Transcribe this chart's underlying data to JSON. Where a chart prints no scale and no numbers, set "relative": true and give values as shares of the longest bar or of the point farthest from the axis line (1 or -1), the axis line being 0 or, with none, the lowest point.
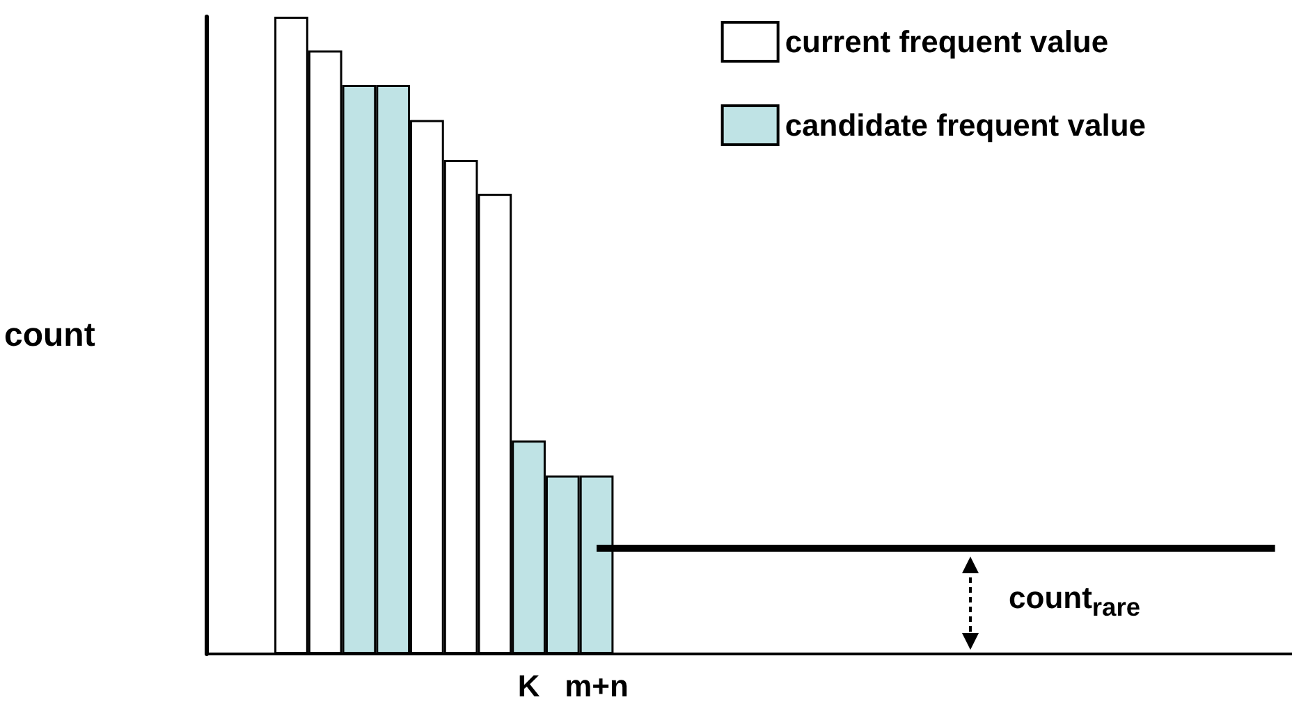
{
  "chart_data": {
    "type": "bar",
    "relative": true,
    "ylabel": "count",
    "legend": "top right",
    "grid": false,
    "categories": [
      null,
      null,
      null,
      null,
      null,
      null,
      null,
      null,
      null,
      "K",
      null,
      "m+n",
      null,
      null,
      null,
      null,
      null,
      null,
      null,
      null,
      null,
      null,
      null,
      null,
      null,
      null,
      null,
      null,
      null,
      null,
      null,
      null
    ],
    "series": [
      {
        "name": "current frequent value",
        "color": "#ffffff",
        "values": [
          null,
          null,
          1,
          0.947,
          null,
          null,
          0.838,
          0.775,
          0.722,
          null,
          null,
          null,
          null,
          null,
          null,
          null,
          null,
          null,
          null,
          null,
          null,
          null,
          null,
          null,
          null,
          null,
          null,
          null,
          null,
          null,
          null,
          null
        ]
      },
      {
        "name": "candidate frequent value",
        "color": "#bfe3e5",
        "values": [
          null,
          null,
          null,
          null,
          0.893,
          0.893,
          null,
          null,
          null,
          0.335,
          0.28,
          0.28,
          null,
          null,
          null,
          null,
          null,
          null,
          null,
          null,
          null,
          null,
          null,
          null,
          null,
          null,
          null,
          null,
          null,
          null,
          null,
          null
        ]
      },
      {
        "type": "line",
        "color": "#000000",
        "values": [
          null,
          null,
          null,
          null,
          null,
          null,
          null,
          null,
          null,
          null,
          null,
          0.166,
          0.166,
          0.166,
          0.166,
          0.166,
          0.166,
          0.166,
          0.166,
          0.166,
          0.166,
          0.166,
          0.166,
          0.166,
          0.166,
          0.166,
          0.166,
          0.166,
          0.166,
          0.166,
          0.166,
          0.166
        ]
      }
    ],
    "annotations": [
      "count$_{rare}$"
    ]
  }
}
